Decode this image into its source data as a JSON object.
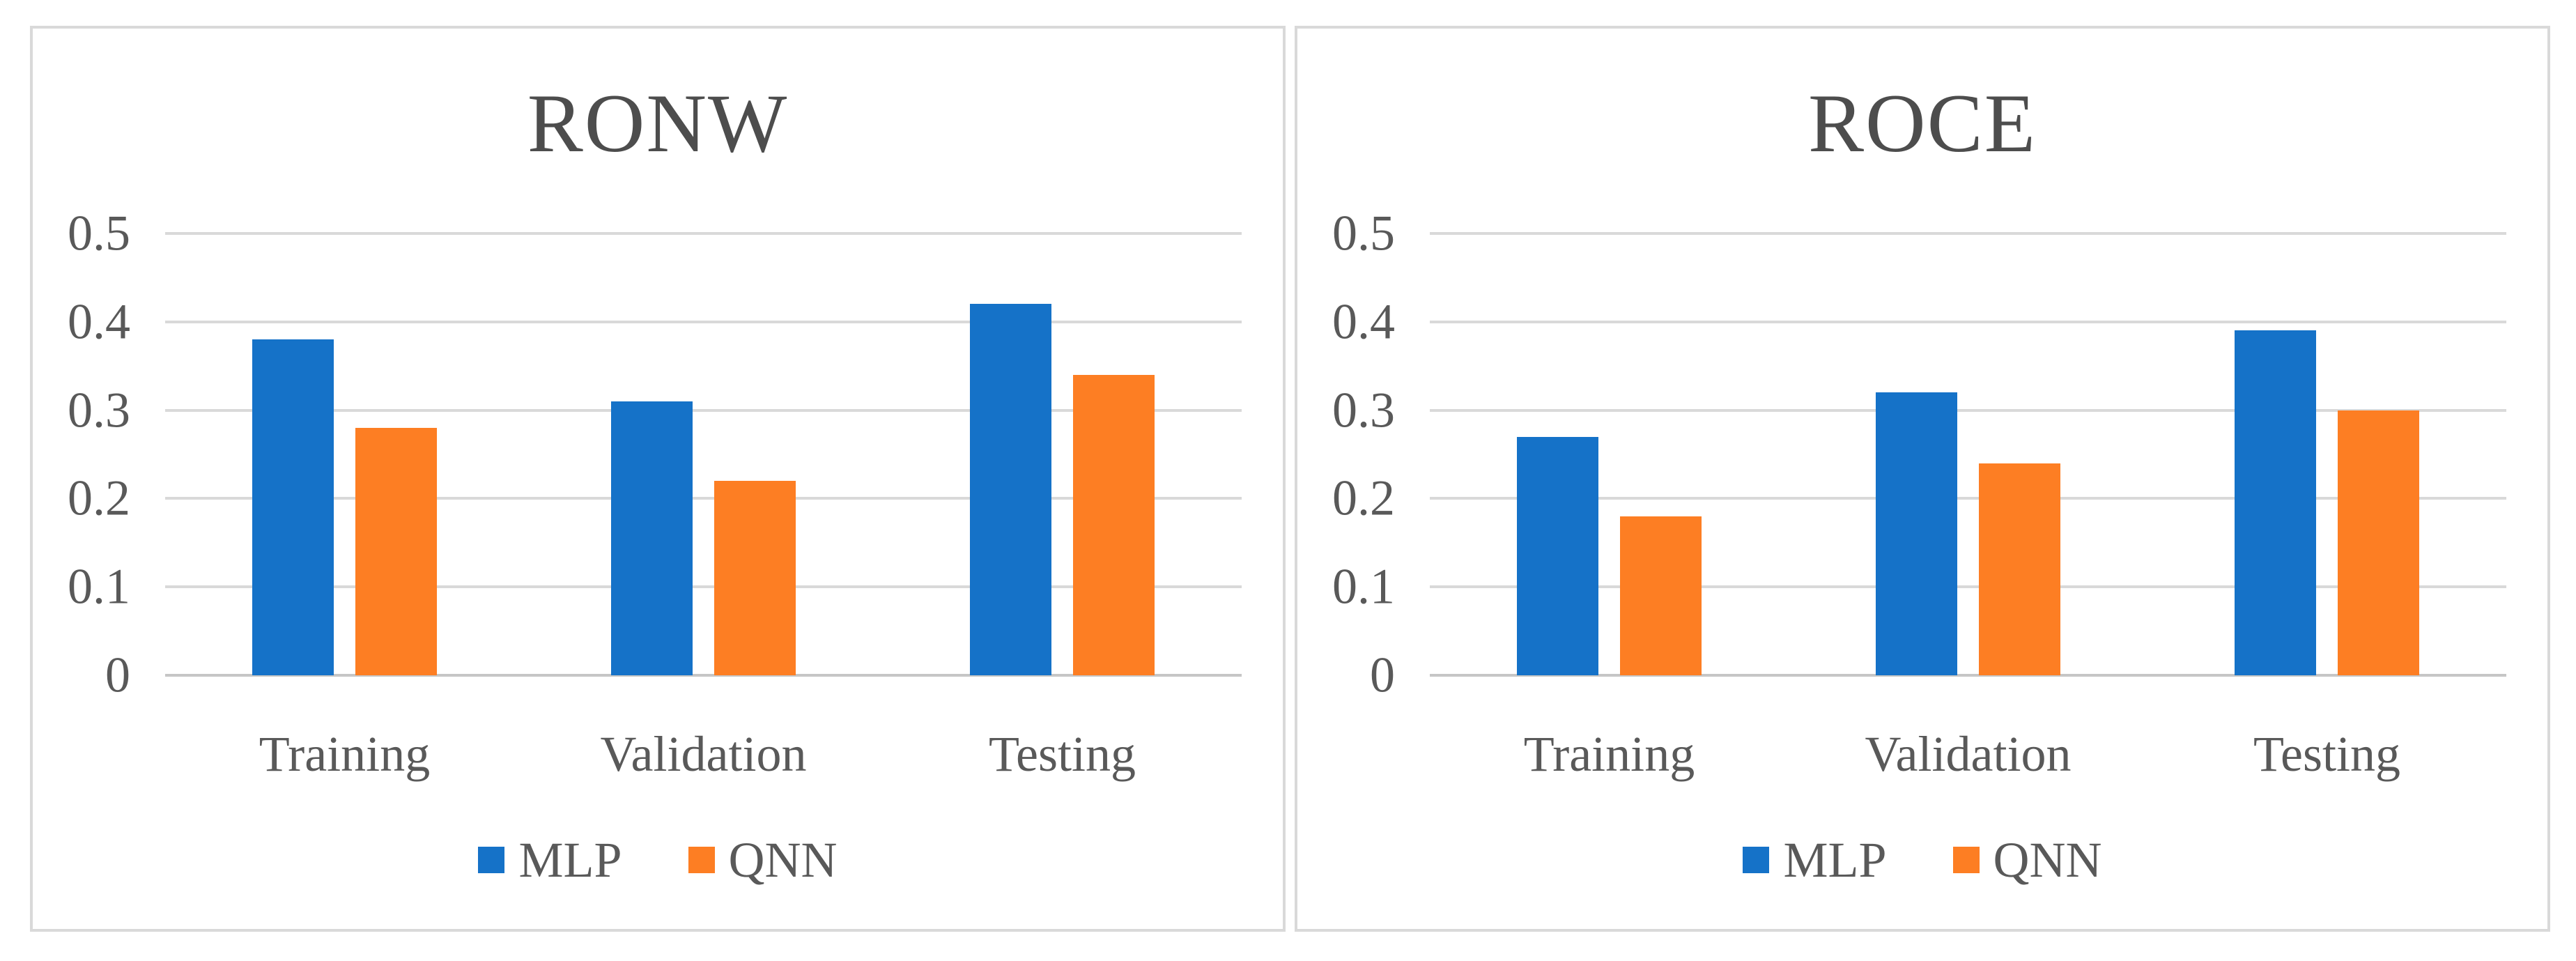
{
  "figure": {
    "description": "Two grouped bar charts comparing MLP and QNN models on RONW and ROCE across Training, Validation and Testing sets",
    "colors": {
      "mlp": "#1572C8",
      "qnn": "#FD7E23",
      "grid": "#D9D9D9",
      "axis": "#C6C6C6",
      "text": "#595959",
      "title": "#4D4D4D",
      "panel_border": "#D9D9D9",
      "background": "#FFFFFF"
    }
  },
  "chart_data": [
    {
      "type": "bar",
      "title": "RONW",
      "categories": [
        "Training",
        "Validation",
        "Testing"
      ],
      "series": [
        {
          "name": "MLP",
          "color": "#1572C8",
          "values": [
            0.38,
            0.31,
            0.42
          ]
        },
        {
          "name": "QNN",
          "color": "#FD7E23",
          "values": [
            0.28,
            0.22,
            0.34
          ]
        }
      ],
      "ylim": [
        0,
        0.5
      ],
      "yticks": [
        0,
        0.1,
        0.2,
        0.3,
        0.4,
        0.5
      ],
      "xlabel": "",
      "ylabel": "",
      "grid": true,
      "legend_position": "bottom"
    },
    {
      "type": "bar",
      "title": "ROCE",
      "categories": [
        "Training",
        "Validation",
        "Testing"
      ],
      "series": [
        {
          "name": "MLP",
          "color": "#1572C8",
          "values": [
            0.27,
            0.32,
            0.39
          ]
        },
        {
          "name": "QNN",
          "color": "#FD7E23",
          "values": [
            0.18,
            0.24,
            0.3
          ]
        }
      ],
      "ylim": [
        0,
        0.5
      ],
      "yticks": [
        0,
        0.1,
        0.2,
        0.3,
        0.4,
        0.5
      ],
      "xlabel": "",
      "ylabel": "",
      "grid": true,
      "legend_position": "bottom"
    }
  ]
}
